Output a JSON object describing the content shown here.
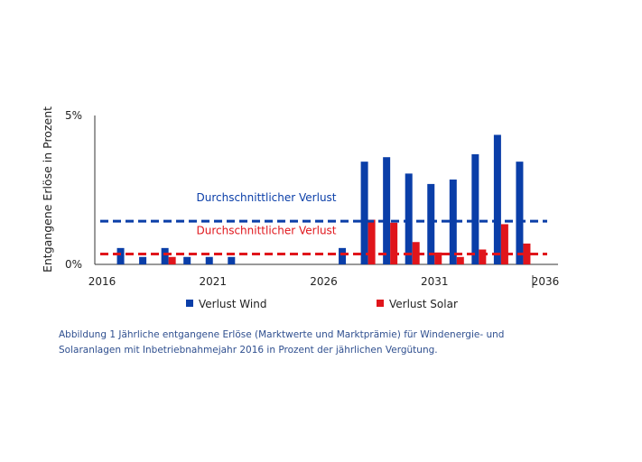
{
  "chart_data": {
    "type": "bar",
    "ylabel": "Entgangene Erlöse in Prozent",
    "yticks": [
      "0%",
      "5%"
    ],
    "ylim": [
      0,
      5
    ],
    "xlim": [
      2016,
      2036
    ],
    "xticks": [
      "2016",
      "2021",
      "2026",
      "2031",
      "2036"
    ],
    "tick_values": [
      2016,
      2021,
      2026,
      2031,
      2036
    ],
    "x": [
      2016,
      2017,
      2018,
      2019,
      2020,
      2021,
      2022,
      2023,
      2024,
      2025,
      2026,
      2027,
      2028,
      2029,
      2030,
      2031,
      2032,
      2033,
      2034,
      2035,
      2036
    ],
    "series": [
      {
        "name": "Verlust Wind",
        "color": "#0a3ea8",
        "values": [
          0.0,
          0.55,
          0.25,
          0.55,
          0.25,
          0.25,
          0.25,
          0.0,
          0.0,
          0.0,
          0.0,
          0.55,
          3.45,
          3.6,
          3.05,
          2.7,
          2.85,
          3.7,
          4.35,
          3.45,
          0.0
        ]
      },
      {
        "name": "Verlust Solar",
        "color": "#e0151b",
        "values": [
          0.0,
          0.0,
          0.0,
          0.25,
          0.0,
          0.0,
          0.0,
          0.0,
          0.0,
          0.0,
          0.0,
          0.0,
          1.5,
          1.4,
          0.75,
          0.4,
          0.25,
          0.5,
          1.35,
          0.7,
          0.0
        ]
      }
    ],
    "averages": [
      {
        "label": "Durchschnittlicher Verlust",
        "value": 1.45,
        "color": "#0a3ea8"
      },
      {
        "label": "Durchschnittlicher Verlust",
        "value": 0.35,
        "color": "#e0151b"
      }
    ],
    "legend": "bottom-center",
    "grid": false
  },
  "caption": "Abbildung 1 Jährliche entgangene Erlöse (Marktwerte und Marktprämie) für Windenergie- und Solaranlagen mit Inbetriebnahmejahr 2016 in Prozent der jährlichen Vergütung."
}
